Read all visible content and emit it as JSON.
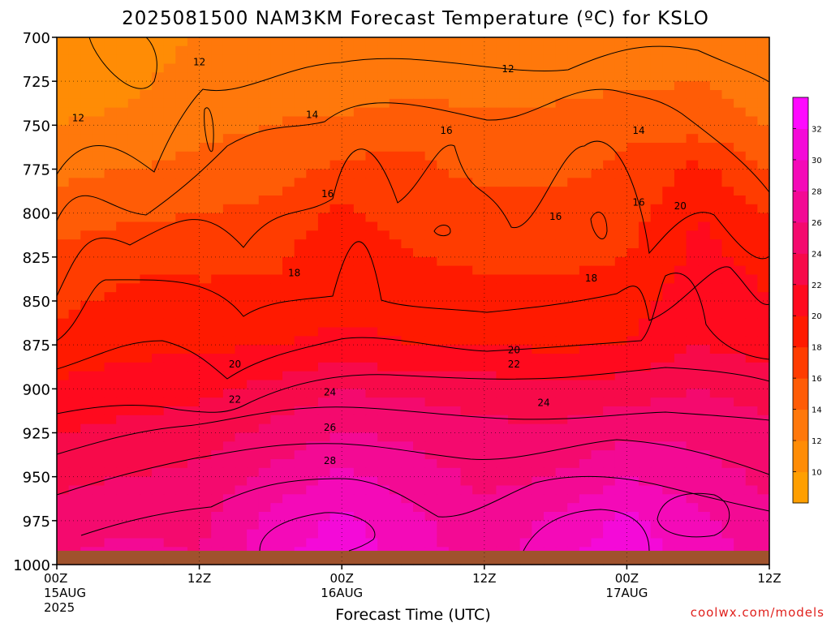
{
  "chart_data": {
    "type": "heatmap",
    "title": "2025081500 NAM3KM Forecast Temperature (ºC) for KSLO",
    "xlabel": "Forecast Time (UTC)",
    "ylabel": "",
    "credit": "coolwx.com/models",
    "x_hours": [
      0,
      6,
      12,
      18,
      24,
      30,
      36,
      42,
      48,
      54,
      60
    ],
    "x_ticks": [
      {
        "hour": 0,
        "label": "00Z",
        "sub1": "15AUG",
        "sub2": "2025"
      },
      {
        "hour": 12,
        "label": "12Z",
        "sub1": "",
        "sub2": ""
      },
      {
        "hour": 24,
        "label": "00Z",
        "sub1": "16AUG",
        "sub2": ""
      },
      {
        "hour": 36,
        "label": "12Z",
        "sub1": "",
        "sub2": ""
      },
      {
        "hour": 48,
        "label": "00Z",
        "sub1": "17AUG",
        "sub2": ""
      },
      {
        "hour": 60,
        "label": "12Z",
        "sub1": "",
        "sub2": ""
      }
    ],
    "xlim": [
      0,
      60
    ],
    "pressure_levels": [
      700,
      725,
      750,
      775,
      800,
      825,
      850,
      875,
      900,
      925,
      950,
      975,
      1000
    ],
    "y_tick_labels": [
      "700",
      "725",
      "750",
      "775",
      "800",
      "825",
      "850",
      "875",
      "900",
      "925",
      "950",
      "975",
      "1000"
    ],
    "ylim": [
      700,
      1000
    ],
    "grid": true,
    "temperature_c": [
      [
        10.5,
        11.0,
        12.0,
        12.5,
        12.0,
        12.0,
        12.0,
        12.5,
        12.5,
        13.0,
        12.5
      ],
      [
        11.0,
        11.5,
        13.0,
        13.0,
        12.5,
        13.0,
        13.0,
        13.5,
        13.5,
        14.0,
        13.0
      ],
      [
        12.0,
        12.5,
        13.5,
        14.0,
        14.5,
        15.5,
        14.5,
        14.5,
        15.5,
        15.0,
        14.0
      ],
      [
        13.5,
        14.0,
        14.5,
        15.0,
        16.5,
        16.5,
        15.5,
        15.5,
        16.5,
        18.5,
        16.0
      ],
      [
        15.0,
        15.5,
        16.0,
        16.5,
        18.5,
        17.0,
        16.5,
        16.5,
        17.0,
        20.0,
        18.0
      ],
      [
        16.5,
        17.5,
        17.5,
        17.5,
        19.5,
        18.0,
        17.5,
        17.5,
        18.0,
        20.5,
        19.5
      ],
      [
        17.5,
        18.5,
        18.5,
        18.5,
        19.5,
        19.5,
        19.0,
        18.5,
        19.0,
        21.5,
        20.0
      ],
      [
        18.5,
        19.5,
        19.5,
        20.0,
        20.5,
        20.0,
        20.0,
        19.5,
        20.0,
        22.0,
        21.0
      ],
      [
        20.5,
        21.0,
        21.5,
        22.5,
        24.0,
        23.5,
        23.0,
        22.5,
        23.0,
        24.0,
        23.0
      ],
      [
        22.0,
        22.5,
        23.0,
        24.5,
        26.0,
        25.5,
        24.5,
        24.5,
        25.5,
        25.5,
        24.5
      ],
      [
        23.5,
        24.0,
        24.5,
        26.5,
        28.5,
        27.0,
        25.5,
        26.0,
        28.0,
        27.0,
        25.5
      ],
      [
        25.0,
        25.5,
        25.5,
        28.5,
        30.5,
        28.5,
        26.5,
        28.5,
        30.5,
        28.5,
        26.5
      ],
      [
        26.0,
        27.0,
        26.0,
        29.5,
        31.5,
        29.0,
        27.0,
        29.5,
        31.5,
        29.0,
        27.5
      ]
    ],
    "contour_labels": [
      {
        "text": "12",
        "hour": 12.0,
        "p": 714
      },
      {
        "text": "12",
        "hour": 38.0,
        "p": 718
      },
      {
        "text": "12",
        "hour": 1.8,
        "p": 746
      },
      {
        "text": "14",
        "hour": 21.5,
        "p": 744
      },
      {
        "text": "14",
        "hour": 49.0,
        "p": 753
      },
      {
        "text": "16",
        "hour": 32.8,
        "p": 753
      },
      {
        "text": "16",
        "hour": 22.8,
        "p": 789
      },
      {
        "text": "16",
        "hour": 42.0,
        "p": 802
      },
      {
        "text": "16",
        "hour": 49.0,
        "p": 794
      },
      {
        "text": "18",
        "hour": 20.0,
        "p": 834
      },
      {
        "text": "18",
        "hour": 45.0,
        "p": 837
      },
      {
        "text": "20",
        "hour": 52.5,
        "p": 796
      },
      {
        "text": "20",
        "hour": 38.5,
        "p": 878
      },
      {
        "text": "20",
        "hour": 15.0,
        "p": 886
      },
      {
        "text": "22",
        "hour": 38.5,
        "p": 886
      },
      {
        "text": "22",
        "hour": 15.0,
        "p": 906
      },
      {
        "text": "24",
        "hour": 23.0,
        "p": 902
      },
      {
        "text": "24",
        "hour": 41.0,
        "p": 908
      },
      {
        "text": "26",
        "hour": 23.0,
        "p": 922
      },
      {
        "text": "28",
        "hour": 23.0,
        "p": 941
      }
    ],
    "colorbar": {
      "ticks": [
        "10",
        "12",
        "14",
        "16",
        "18",
        "20",
        "22",
        "24",
        "26",
        "28",
        "30",
        "32"
      ],
      "bins": [
        {
          "lo": 8,
          "hi": 10,
          "color": "#ff9f00"
        },
        {
          "lo": 10,
          "hi": 12,
          "color": "#ff8c05"
        },
        {
          "lo": 12,
          "hi": 14,
          "color": "#ff780b"
        },
        {
          "lo": 14,
          "hi": 16,
          "color": "#ff5c06"
        },
        {
          "lo": 16,
          "hi": 18,
          "color": "#ff3c00"
        },
        {
          "lo": 18,
          "hi": 20,
          "color": "#ff1a00"
        },
        {
          "lo": 20,
          "hi": 22,
          "color": "#ff0a1e"
        },
        {
          "lo": 22,
          "hi": 24,
          "color": "#f70a4a"
        },
        {
          "lo": 24,
          "hi": 26,
          "color": "#f40a6e"
        },
        {
          "lo": 26,
          "hi": 28,
          "color": "#f30a94"
        },
        {
          "lo": 28,
          "hi": 30,
          "color": "#f40ab8"
        },
        {
          "lo": 30,
          "hi": 32,
          "color": "#f40ad8"
        },
        {
          "lo": 32,
          "hi": 34,
          "color": "#ff09ff"
        }
      ]
    },
    "ground_color": "#a0522d",
    "credit_color": "#e0201c"
  }
}
